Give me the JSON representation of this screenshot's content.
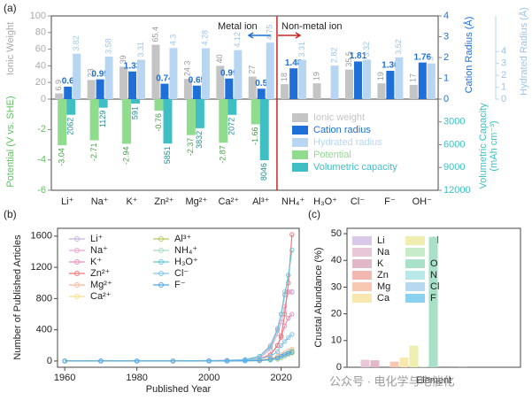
{
  "chart_data": [
    {
      "type": "bar",
      "panel": "(a)",
      "categories": [
        "Li⁺",
        "Na⁺",
        "K⁺",
        "Zn²⁺",
        "Mg²⁺",
        "Ca²⁺",
        "Al³⁺",
        "NH₄⁺",
        "H₃O⁺",
        "Cl⁻",
        "F⁻",
        "OH⁻"
      ],
      "ylabel": "Ionic Weight",
      "ylim": [
        0,
        100
      ],
      "yticks": [
        0,
        20,
        40,
        60,
        80,
        100
      ],
      "potential_label": "Potential (V vs. SHE)",
      "potential_lim": [
        -6,
        0
      ],
      "potential_ticks": [
        -2,
        -4,
        -6
      ],
      "y2label": "Cation Radius (Å)",
      "y2lim": [
        0,
        4
      ],
      "y2ticks": [
        0,
        1,
        2,
        3,
        4
      ],
      "capacity_label": [
        "Volumetric Capacity",
        "(mAh cm⁻³)"
      ],
      "capacity_lim": [
        0,
        12000
      ],
      "capacity_ticks": [
        3000,
        6000,
        9000,
        12000
      ],
      "hydrated_label": "Hydrated Radius (Å)",
      "hydrated_lim": [
        0,
        7
      ],
      "hydrated_ticks": [
        0,
        1,
        2,
        3,
        4
      ],
      "annotations": [
        "Metal ion",
        "Non-metal ion"
      ],
      "series": [
        {
          "name": "Ionic weight",
          "color": "#c4c4c4",
          "axis": "y",
          "values": [
            6.9,
            23,
            39,
            65.4,
            24.3,
            40,
            27,
            18,
            19,
            35.5,
            19,
            17
          ]
        },
        {
          "name": "Cation radius",
          "color": "#1f6fd8",
          "axis": "y2",
          "values": [
            0.6,
            0.95,
            1.33,
            0.74,
            0.65,
            0.99,
            0.5,
            1.48,
            null,
            1.81,
            1.36,
            1.76
          ]
        },
        {
          "name": "Hydrated radius",
          "color": "#b8d6f2",
          "axis": "hydrated",
          "values": [
            3.82,
            3.58,
            3.31,
            4.3,
            4.28,
            4.12,
            4.75,
            3.31,
            2.82,
            3.32,
            3.52,
            3
          ]
        },
        {
          "name": "Potential",
          "color": "#8fdc8f",
          "axis": "potential",
          "values": [
            -3.04,
            -2.71,
            -2.94,
            -0.76,
            -2.37,
            -2.87,
            -1.66,
            null,
            null,
            null,
            null,
            null
          ]
        },
        {
          "name": "Volumetric capacity",
          "color": "#3fbfc4",
          "axis": "capacity",
          "values": [
            2062,
            1129,
            591,
            5851,
            3832,
            2072,
            8046,
            null,
            null,
            null,
            null,
            null
          ]
        }
      ]
    },
    {
      "type": "line",
      "panel": "(b)",
      "xlabel": "Published Year",
      "ylabel": "Number of Published Articles",
      "x": [
        1960,
        1970,
        1980,
        1990,
        2000,
        2005,
        2010,
        2014,
        2017,
        2019,
        2020,
        2021,
        2022,
        2023
      ],
      "xlim": [
        1958,
        2025
      ],
      "xticks": [
        1960,
        1980,
        2000,
        2020
      ],
      "ylim": [
        -80,
        1700
      ],
      "yticks": [
        0,
        400,
        800,
        1200,
        1600
      ],
      "series": [
        {
          "name": "Li⁺",
          "color": "#c8b4e0",
          "values": [
            0,
            0,
            0,
            2,
            5,
            10,
            20,
            60,
            200,
            420,
            600,
            890,
            890,
            890
          ]
        },
        {
          "name": "Na⁺",
          "color": "#e8a8d0",
          "values": [
            0,
            0,
            0,
            0,
            2,
            5,
            10,
            40,
            150,
            350,
            500,
            700,
            880,
            880
          ]
        },
        {
          "name": "K⁺",
          "color": "#e890b8",
          "values": [
            0,
            0,
            0,
            0,
            0,
            2,
            5,
            20,
            80,
            200,
            300,
            450,
            550,
            600
          ]
        },
        {
          "name": "Zn²⁺",
          "color": "#f07878",
          "values": [
            0,
            0,
            0,
            0,
            2,
            5,
            10,
            30,
            80,
            200,
            320,
            600,
            1000,
            1620
          ]
        },
        {
          "name": "Mg²⁺",
          "color": "#f8b898",
          "values": [
            0,
            0,
            0,
            0,
            2,
            5,
            10,
            15,
            30,
            60,
            80,
            100,
            130,
            150
          ]
        },
        {
          "name": "Ca²⁺",
          "color": "#f8e090",
          "values": [
            0,
            0,
            0,
            0,
            0,
            2,
            5,
            8,
            15,
            30,
            40,
            60,
            80,
            100
          ]
        },
        {
          "name": "Al³⁺",
          "color": "#b8c860",
          "values": [
            0,
            0,
            0,
            0,
            0,
            2,
            5,
            10,
            20,
            40,
            60,
            80,
            100,
            130
          ]
        },
        {
          "name": "NH₄⁺",
          "color": "#a8dcc0",
          "values": [
            0,
            0,
            0,
            0,
            0,
            0,
            2,
            5,
            10,
            20,
            40,
            60,
            90,
            120
          ]
        },
        {
          "name": "H₃O⁺",
          "color": "#60c8d8",
          "values": [
            0,
            0,
            0,
            0,
            2,
            5,
            15,
            60,
            180,
            400,
            600,
            850,
            1100,
            1420
          ]
        },
        {
          "name": "Cl⁻",
          "color": "#80c8e8",
          "values": [
            0,
            0,
            0,
            0,
            0,
            2,
            10,
            30,
            60,
            120,
            200,
            250,
            300,
            340
          ]
        },
        {
          "name": "F⁻",
          "color": "#50a8e8",
          "values": [
            0,
            0,
            0,
            0,
            0,
            0,
            2,
            5,
            20,
            40,
            60,
            80,
            100,
            110
          ]
        }
      ]
    },
    {
      "type": "bar",
      "panel": "(c)",
      "xlabel": "Element",
      "ylabel": "Crustal Abundance (%)",
      "categories": [
        "Li",
        "Na",
        "K",
        "Zn",
        "Mg",
        "Ca",
        "Al",
        "H",
        "O",
        "N",
        "Cl",
        "F"
      ],
      "values": [
        0.002,
        2.8,
        2.6,
        0.007,
        2.1,
        3.6,
        8.1,
        0.14,
        48.8,
        0.002,
        0.013,
        0.06
      ],
      "colors": [
        "#d9c8e8",
        "#e8c8d8",
        "#e0b8c8",
        "#f0b8b0",
        "#f8c8b0",
        "#f8e8b0",
        "#eeeeb0",
        "#c8ecc8",
        "#a8e0c8",
        "#b8e8e8",
        "#b8d8f0",
        "#8cd0f0"
      ],
      "ylim": [
        0,
        52
      ],
      "yticks": [
        0,
        10,
        20,
        30,
        40,
        50
      ]
    }
  ],
  "watermark": "公众号 · 电化学与电催化"
}
